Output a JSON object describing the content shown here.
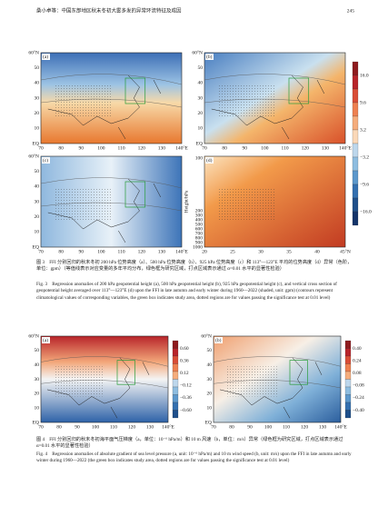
{
  "header": {
    "title": "桑小卓等：中国东部地区秋末冬初大雾多发的异常环流特征及成因",
    "page": "245"
  },
  "fig3": {
    "panels": [
      "(a)",
      "(b)",
      "(c)",
      "(d)"
    ],
    "lat_ticks": [
      "60°N",
      "50",
      "40",
      "30",
      "20",
      "10",
      "EQ"
    ],
    "lon_ticks": [
      "70",
      "80",
      "90",
      "100",
      "110",
      "120",
      "130",
      "140°E"
    ],
    "d_ylabel": "Height/hPa",
    "d_yticks": [
      "100",
      "200",
      "300",
      "400",
      "500",
      "600",
      "700",
      "800",
      "900",
      "1000"
    ],
    "d_xticks": [
      "20",
      "25",
      "30",
      "35",
      "40",
      "45°N"
    ],
    "colorbar": [
      "16.0",
      "9.6",
      "3.2",
      "−3.2",
      "−9.6",
      "−16.0"
    ],
    "caption_cn": "图 3　FFI 分别回归的秋末冬初 200 hPa 位势高度（a）、500 hPa 位势高度（b）、925 hPa 位势高度（c）和 113°—123°E 平均的位势高度（d）异常（色阶，单位：gpm）（等值线表示对应变量的多年平均分布，绿色框为研究区域，打点区域表示通过 α=0.01 水平的显著性检验）",
    "caption_en": "Fig. 3　Regression anomalies of 200 hPa geopotential height (a), 500 hPa geopotential height (b), 925 hPa geopotential height (c), and vertical cross section of geopotential height averaged over 113°—123°E (d) upon the FFI in late autumn and early winter during 1960—2022 (shaded, unit: gpm) (contours represent climatological values of corresponding variables, the green box indicates study area, dotted regions are for values passing the significance test at 0.01 level)"
  },
  "fig4": {
    "panels": [
      "(a)",
      "(b)"
    ],
    "lat_ticks": [
      "60°N",
      "50",
      "40",
      "30",
      "20",
      "10",
      "EQ"
    ],
    "lon_ticks": [
      "70",
      "80",
      "90",
      "100",
      "110",
      "120",
      "130",
      "140°E"
    ],
    "colorbar_a": [
      "0.60",
      "0.36",
      "0.12",
      "−0.12",
      "−0.36",
      "−0.60"
    ],
    "colorbar_b": [
      "0.40",
      "0.24",
      "0.08",
      "−0.08",
      "−0.24",
      "−0.40"
    ],
    "caption_cn": "图 4　FFI 分别回归的秋末冬初海平面气压梯度（a，单位：10⁻⁶ hPa/m）和 10 m 风速（b，单位：m/s）异常（绿色框为研究区域，打点区域表示通过 α=0.01 水平的显著性检验）",
    "caption_en": "Fig. 4　Regression anomalies of absolute gradient of sea level pressure (a, unit: 10⁻⁶ hPa/m) and 10 m wind speed (b, unit: m/s) upon the FFI in late autumn and early winter during 1960—2022 (the green box indicates study area, dotted regions are for values passing the significance test at 0.01 level)"
  }
}
